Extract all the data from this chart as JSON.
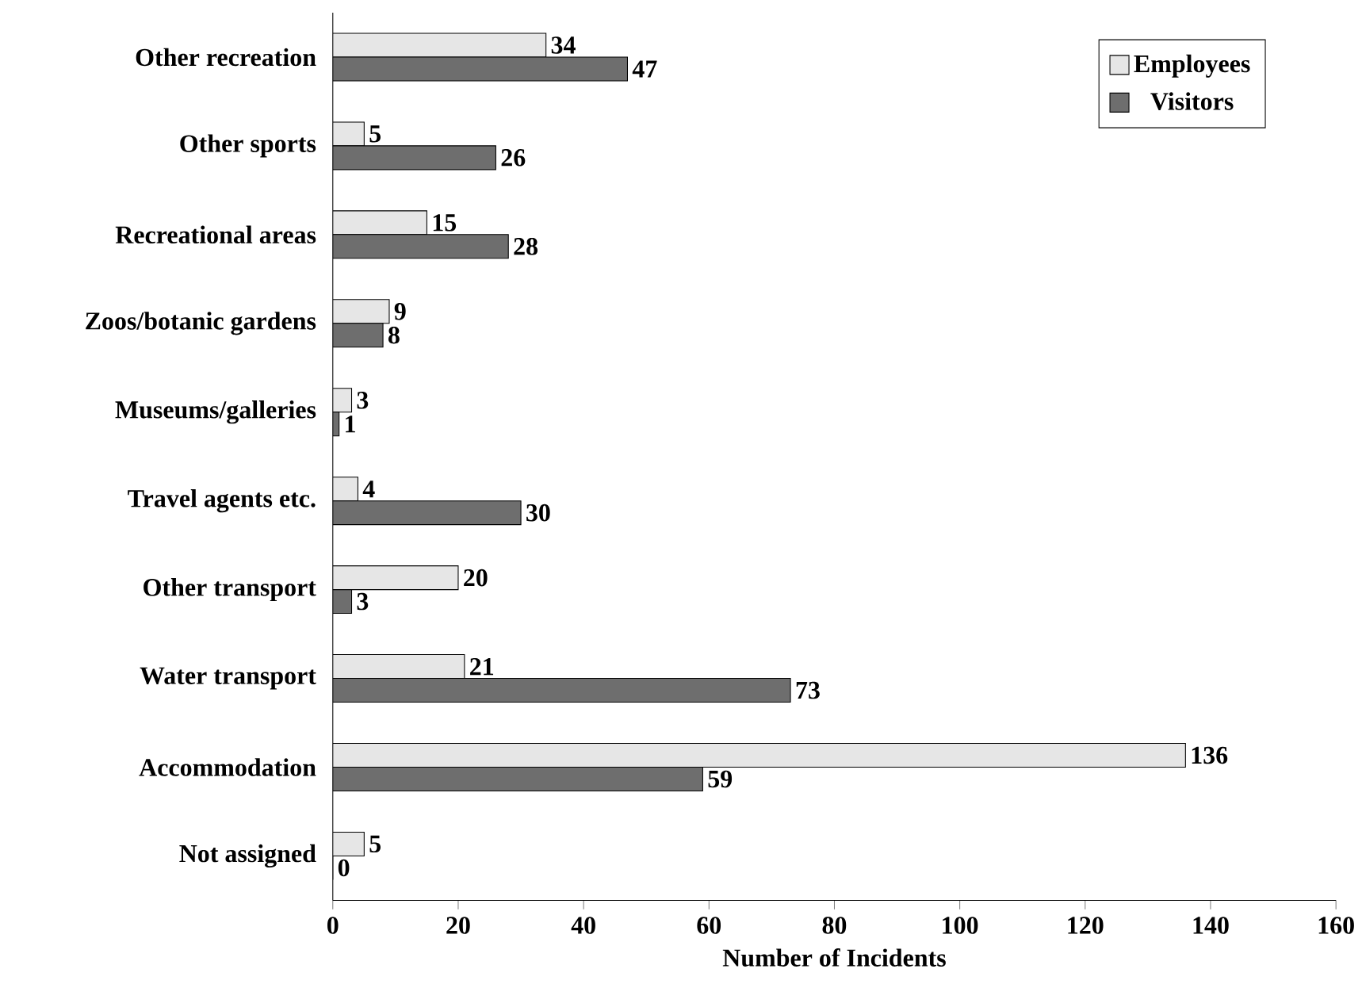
{
  "chart_data": {
    "type": "bar",
    "orientation": "horizontal",
    "xlabel": "Number of Incidents",
    "categories": [
      "Other recreation",
      "Other sports",
      "Recreational areas",
      "Zoos/botanic gardens",
      "Museums/galleries",
      "Travel agents etc.",
      "Other transport",
      "Water transport",
      "Accommodation",
      "Not assigned"
    ],
    "series": [
      {
        "name": "Employees",
        "color": "#e6e6e6",
        "values": [
          34,
          5,
          15,
          9,
          3,
          4,
          20,
          21,
          136,
          5
        ]
      },
      {
        "name": "Visitors",
        "color": "#6e6e6e",
        "values": [
          47,
          26,
          28,
          8,
          1,
          30,
          3,
          73,
          59,
          0
        ]
      }
    ],
    "xlim": [
      0,
      160
    ],
    "xticks": [
      0,
      20,
      40,
      60,
      80,
      100,
      120,
      140,
      160
    ],
    "data_labels": true,
    "legend": "top right",
    "grid": false
  }
}
